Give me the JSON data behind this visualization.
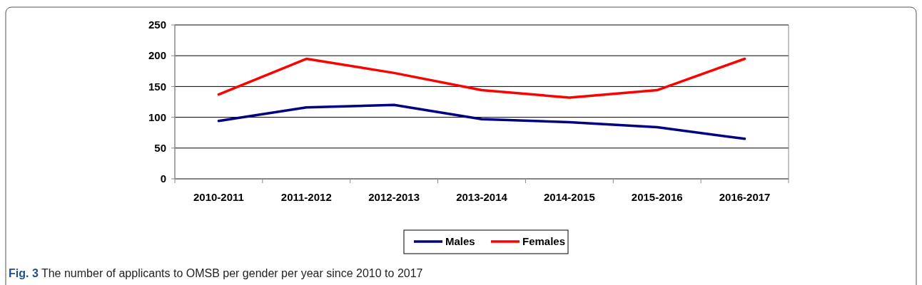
{
  "chart_data": {
    "type": "line",
    "categories": [
      "2010-2011",
      "2011-2012",
      "2012-2013",
      "2013-2014",
      "2014-2015",
      "2015-2016",
      "2016-2017"
    ],
    "series": [
      {
        "name": "Males",
        "color": "#000080",
        "values": [
          94,
          116,
          120,
          97,
          92,
          84,
          65
        ]
      },
      {
        "name": "Females",
        "color": "#ff0000",
        "values": [
          137,
          195,
          172,
          144,
          132,
          144,
          195
        ]
      }
    ],
    "ylim": [
      0,
      250
    ],
    "yticks": [
      0,
      50,
      100,
      150,
      200,
      250
    ],
    "grid": "y",
    "legend": "bottom",
    "marker": "none",
    "line_style": "solid",
    "annotations": [
      "Fig. 3",
      "The number of applicants to OMSB per gender per year since 2010 to 2017"
    ]
  }
}
